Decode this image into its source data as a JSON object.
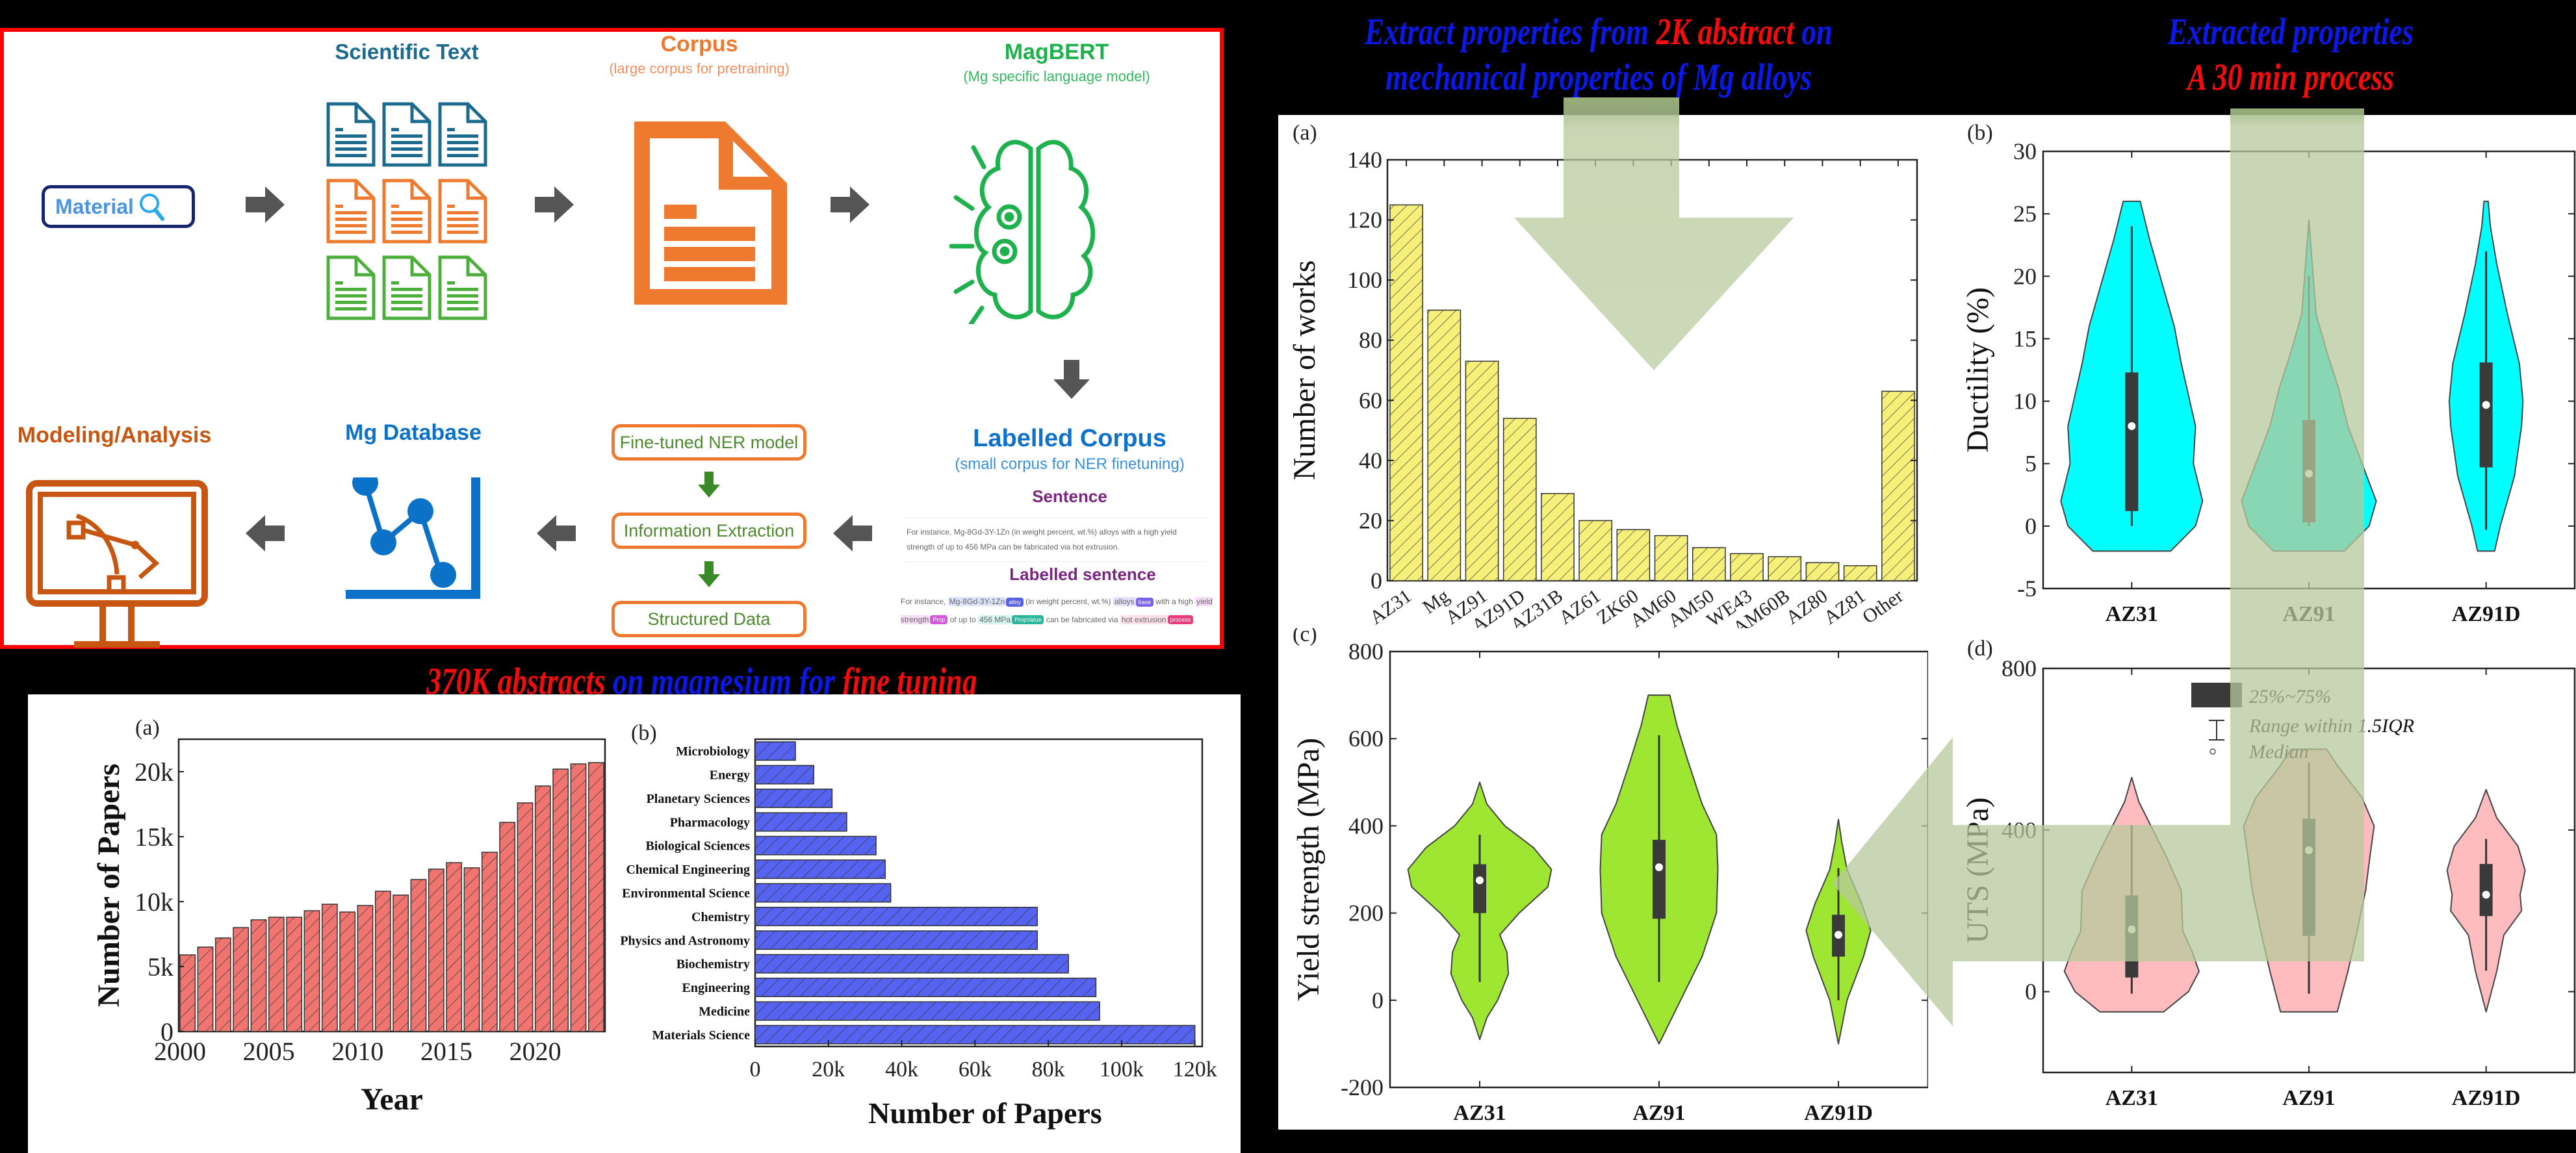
{
  "headlines": {
    "left_bottom": [
      {
        "text": "370K abstracts ",
        "color": "red"
      },
      {
        "text": "on magnesium for ",
        "color": "blue"
      },
      {
        "text": "fine tuning",
        "color": "red"
      }
    ],
    "right_top_line1": [
      {
        "text": "Extract properties from ",
        "color": "blue"
      },
      {
        "text": "2K abstract",
        "color": "red"
      },
      {
        "text": " on",
        "color": "blue"
      }
    ],
    "right_top_line2": [
      {
        "text": "mechanical properties of Mg alloys",
        "color": "blue"
      }
    ],
    "far_right_line1": [
      {
        "text": "Extracted properties",
        "color": "blue"
      }
    ],
    "far_right_line2": [
      {
        "text": "A 30 min process",
        "color": "red"
      }
    ]
  },
  "workflow": {
    "search_box_label": "Material",
    "scientific_text": {
      "title": "Scientific Text"
    },
    "corpus": {
      "title": "Corpus",
      "subtitle": "(large corpus for pretraining)"
    },
    "magbert": {
      "title": "MagBERT",
      "subtitle": "(Mg specific language model)"
    },
    "labelled_corpus": {
      "title": "Labelled Corpus",
      "subtitle": "(small corpus for NER finetuning)"
    },
    "sentence": {
      "title": "Sentence",
      "text": "For instance, Mg-8Gd-3Y-1Zn (in weight percent, wt.%) alloys with a high yield strength of up to 456 MPa can be fabricated via hot extrusion."
    },
    "labelled_sentence": {
      "title": "Labelled sentence",
      "segments": [
        {
          "text": "For instance, ",
          "hl": null,
          "tag": null
        },
        {
          "text": "Mg-8Gd-3Y-1Zn",
          "hl": "#dde3fb",
          "tag": {
            "label": "alloy",
            "color": "#5562e6"
          }
        },
        {
          "text": " (in weight percent, wt.%) ",
          "hl": null,
          "tag": null
        },
        {
          "text": "alloys",
          "hl": "#e6e0fb",
          "tag": {
            "label": "base",
            "color": "#7a63e8"
          }
        },
        {
          "text": " with a high ",
          "hl": null,
          "tag": null
        },
        {
          "text": "yield strength",
          "hl": "#f6dcf6",
          "tag": {
            "label": "Prop",
            "color": "#d45ad9"
          }
        },
        {
          "text": " of up to ",
          "hl": null,
          "tag": null
        },
        {
          "text": "456 MPa",
          "hl": "#d6f5ee",
          "tag": {
            "label": "PropValue",
            "color": "#2bb59a"
          }
        },
        {
          "text": " can be fabricated via ",
          "hl": null,
          "tag": null
        },
        {
          "text": "hot extrusion",
          "hl": "#fde0ea",
          "tag": {
            "label": "process",
            "color": "#e83c7d"
          }
        },
        {
          "text": ".",
          "hl": null,
          "tag": null
        }
      ]
    },
    "ner_steps": [
      "Fine-tuned NER model",
      "Information Extraction",
      "Structured Data"
    ],
    "mg_database": {
      "title": "Mg Database"
    },
    "modeling": {
      "title": "Modeling/Analysis"
    },
    "colors": {
      "blue_doc": "#1d6a8f",
      "orange_doc": "#ee7a30",
      "green_doc": "#4caf3c",
      "magbert_green": "#1fb14e",
      "db_blue": "#0c72c7",
      "modeling_orange": "#c65611",
      "arrow_gray": "#555555",
      "border_red": "#ff0000"
    }
  },
  "chart_data": [
    {
      "id": "papers_per_year",
      "panel_label": "(a)",
      "type": "bar",
      "title": "",
      "xlabel": "Year",
      "ylabel": "Number of Papers",
      "x": [
        2000,
        2001,
        2002,
        2003,
        2004,
        2005,
        2006,
        2007,
        2008,
        2009,
        2010,
        2011,
        2012,
        2013,
        2014,
        2015,
        2016,
        2017,
        2018,
        2019,
        2020,
        2021,
        2022,
        2023
      ],
      "values": [
        5900,
        6500,
        7200,
        8000,
        8600,
        8800,
        8800,
        9300,
        9800,
        9200,
        9700,
        10800,
        10500,
        11700,
        12500,
        13000,
        12600,
        13800,
        16100,
        17600,
        18900,
        20200,
        20600,
        20700
      ],
      "xticks": [
        2000,
        2005,
        2010,
        2015,
        2020
      ],
      "yticks": [
        0,
        5000,
        10000,
        15000,
        20000
      ],
      "ytick_labels": [
        "0",
        "5k",
        "10k",
        "15k",
        "20k"
      ],
      "ylim": [
        0,
        22500
      ],
      "color": "#f07470",
      "hatch": true
    },
    {
      "id": "papers_by_field",
      "panel_label": "(b)",
      "type": "bar",
      "orientation": "horizontal",
      "xlabel": "Number of Papers",
      "ylabel": "",
      "categories": [
        "Microbiology",
        "Energy",
        "Planetary Sciences",
        "Pharmacology",
        "Biological Sciences",
        "Chemical Engineering",
        "Environmental Science",
        "Chemistry",
        "Physics and Astronomy",
        "Biochemistry",
        "Engineering",
        "Medicine",
        "Materials Science"
      ],
      "values": [
        11000,
        16000,
        21000,
        25000,
        33000,
        35500,
        37000,
        77000,
        77000,
        85500,
        93000,
        94000,
        120000
      ],
      "xticks": [
        0,
        20000,
        40000,
        60000,
        80000,
        100000,
        120000
      ],
      "xtick_labels": [
        "0",
        "20k",
        "40k",
        "60k",
        "80k",
        "100k",
        "120k"
      ],
      "xlim": [
        0,
        122000
      ],
      "color": "#5563f0",
      "hatch": true
    },
    {
      "id": "works_per_alloy",
      "panel_label": "(a)",
      "type": "bar",
      "xlabel": "",
      "ylabel": "Number of works",
      "categories": [
        "AZ31",
        "Mg",
        "AZ91",
        "AZ91D",
        "AZ31B",
        "AZ61",
        "ZK60",
        "AM60",
        "AM50",
        "WE43",
        "AM60B",
        "AZ80",
        "AZ81",
        "Other"
      ],
      "values": [
        125,
        90,
        73,
        54,
        29,
        20,
        17,
        15,
        11,
        9,
        8,
        6,
        5,
        63
      ],
      "yticks": [
        0,
        20,
        40,
        60,
        80,
        100,
        120,
        140
      ],
      "ylim": [
        0,
        140
      ],
      "color": "#f6f07a",
      "hatch": true
    },
    {
      "id": "ductility",
      "panel_label": "(b)",
      "type": "violin",
      "ylabel": "Ductility (%)",
      "categories": [
        "AZ31",
        "AZ91",
        "AZ91D"
      ],
      "yticks": [
        -5,
        0,
        5,
        10,
        15,
        20,
        25,
        30
      ],
      "ylim": [
        -5,
        30
      ],
      "color": "#00ffff",
      "series": [
        {
          "name": "AZ31",
          "min": -2,
          "max": 26,
          "whisker_low": 0,
          "whisker_high": 24,
          "q1": 1.2,
          "median": 8.0,
          "q3": 12.3,
          "profile": [
            [
              -2,
              0.55
            ],
            [
              0,
              0.9
            ],
            [
              2,
              1.0
            ],
            [
              5,
              0.87
            ],
            [
              8,
              0.9
            ],
            [
              10,
              0.82
            ],
            [
              13,
              0.7
            ],
            [
              16,
              0.6
            ],
            [
              20,
              0.4
            ],
            [
              23,
              0.25
            ],
            [
              26,
              0.12
            ]
          ]
        },
        {
          "name": "AZ91",
          "min": -2,
          "max": 24.5,
          "whisker_low": 0,
          "whisker_high": 20,
          "q1": 0.3,
          "median": 4.2,
          "q3": 8.5,
          "profile": [
            [
              -2,
              0.5
            ],
            [
              0,
              0.85
            ],
            [
              2,
              0.95
            ],
            [
              5,
              0.75
            ],
            [
              8,
              0.55
            ],
            [
              11,
              0.42
            ],
            [
              14,
              0.25
            ],
            [
              17,
              0.1
            ],
            [
              20,
              0.06
            ],
            [
              24.5,
              0.0
            ]
          ]
        },
        {
          "name": "AZ91D",
          "min": -2,
          "max": 26,
          "whisker_low": -0.3,
          "whisker_high": 22,
          "q1": 4.7,
          "median": 9.7,
          "q3": 13.1,
          "profile": [
            [
              -2,
              0.12
            ],
            [
              0,
              0.2
            ],
            [
              4,
              0.4
            ],
            [
              8,
              0.5
            ],
            [
              10,
              0.52
            ],
            [
              13,
              0.47
            ],
            [
              17,
              0.3
            ],
            [
              21,
              0.15
            ],
            [
              24,
              0.06
            ],
            [
              26,
              0.03
            ]
          ]
        }
      ]
    },
    {
      "id": "yield_strength",
      "panel_label": "(c)",
      "type": "violin",
      "ylabel": "Yield strength (MPa)",
      "categories": [
        "AZ31",
        "AZ91",
        "AZ91D"
      ],
      "yticks": [
        -200,
        0,
        200,
        400,
        600,
        800
      ],
      "ylim": [
        -200,
        800
      ],
      "color": "#9ee632",
      "series": [
        {
          "name": "AZ31",
          "min": -90,
          "max": 500,
          "whisker_low": 42,
          "whisker_high": 380,
          "q1": 200,
          "median": 275,
          "q3": 312,
          "profile": [
            [
              -90,
              0.0
            ],
            [
              -40,
              0.1
            ],
            [
              0,
              0.25
            ],
            [
              60,
              0.4
            ],
            [
              110,
              0.38
            ],
            [
              150,
              0.28
            ],
            [
              200,
              0.55
            ],
            [
              260,
              0.95
            ],
            [
              300,
              1.0
            ],
            [
              350,
              0.75
            ],
            [
              400,
              0.35
            ],
            [
              450,
              0.1
            ],
            [
              500,
              0.0
            ]
          ]
        },
        {
          "name": "AZ91",
          "min": -100,
          "max": 700,
          "whisker_low": 42,
          "whisker_high": 608,
          "q1": 187,
          "median": 305,
          "q3": 368,
          "profile": [
            [
              -100,
              0.0
            ],
            [
              0,
              0.3
            ],
            [
              100,
              0.6
            ],
            [
              200,
              0.8
            ],
            [
              300,
              0.82
            ],
            [
              380,
              0.8
            ],
            [
              450,
              0.6
            ],
            [
              550,
              0.4
            ],
            [
              630,
              0.25
            ],
            [
              700,
              0.15
            ]
          ]
        },
        {
          "name": "AZ91D",
          "min": -100,
          "max": 415,
          "whisker_low": 0,
          "whisker_high": 303,
          "q1": 100,
          "median": 150,
          "q3": 196,
          "profile": [
            [
              -100,
              0.0
            ],
            [
              0,
              0.12
            ],
            [
              100,
              0.35
            ],
            [
              160,
              0.45
            ],
            [
              220,
              0.33
            ],
            [
              300,
              0.12
            ],
            [
              360,
              0.05
            ],
            [
              415,
              0.0
            ]
          ]
        }
      ]
    },
    {
      "id": "uts",
      "panel_label": "(d)",
      "type": "violin",
      "ylabel": "UTS (MPa)",
      "categories": [
        "AZ31",
        "AZ91",
        "AZ91D"
      ],
      "yticks": [
        0,
        400,
        800
      ],
      "ylim": [
        -200,
        800
      ],
      "color": "#ffbcbf",
      "series": [
        {
          "name": "AZ31",
          "min": -50,
          "max": 530,
          "whisker_low": -5,
          "whisker_high": 412,
          "q1": 35,
          "median": 154,
          "q3": 238,
          "profile": [
            [
              -50,
              0.45
            ],
            [
              0,
              0.8
            ],
            [
              50,
              0.95
            ],
            [
              100,
              0.85
            ],
            [
              150,
              0.72
            ],
            [
              250,
              0.7
            ],
            [
              330,
              0.5
            ],
            [
              400,
              0.3
            ],
            [
              470,
              0.1
            ],
            [
              530,
              0.0
            ]
          ]
        },
        {
          "name": "AZ91",
          "min": -50,
          "max": 600,
          "whisker_low": -5,
          "whisker_high": 567,
          "q1": 138,
          "median": 350,
          "q3": 428,
          "profile": [
            [
              -50,
              0.4
            ],
            [
              50,
              0.55
            ],
            [
              150,
              0.68
            ],
            [
              250,
              0.8
            ],
            [
              320,
              0.85
            ],
            [
              410,
              0.92
            ],
            [
              480,
              0.75
            ],
            [
              560,
              0.4
            ],
            [
              600,
              0.25
            ]
          ]
        },
        {
          "name": "AZ91D",
          "min": -50,
          "max": 500,
          "whisker_low": 52,
          "whisker_high": 378,
          "q1": 187,
          "median": 240,
          "q3": 316,
          "profile": [
            [
              -50,
              0.0
            ],
            [
              50,
              0.15
            ],
            [
              140,
              0.25
            ],
            [
              200,
              0.5
            ],
            [
              240,
              0.48
            ],
            [
              300,
              0.55
            ],
            [
              360,
              0.45
            ],
            [
              430,
              0.15
            ],
            [
              500,
              0.0
            ]
          ]
        }
      ],
      "legend": {
        "box": "25%~75%",
        "whisker": "Range within 1.5IQR",
        "median": "Median"
      }
    }
  ]
}
